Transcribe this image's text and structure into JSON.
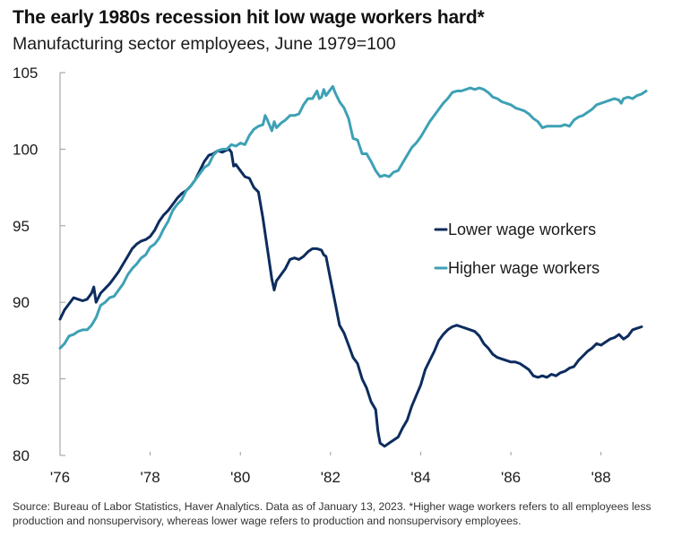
{
  "title": "The early 1980s recession hit low wage workers hard*",
  "subtitle": "Manufacturing sector employees, June 1979=100",
  "source": "Source: Bureau of Labor Statistics, Haver Analytics. Data as of January 13, 2023. *Higher wage workers refers to all employees less production and nonsupervisory, whereas lower wage refers to production and nonsupervisory employees.",
  "colors": {
    "lower": "#0d2c5e",
    "higher": "#3ea1b5",
    "axis": "#9a9a9a"
  },
  "chart_data": {
    "type": "line",
    "title": "The early 1980s recession hit low wage workers hard*",
    "subtitle": "Manufacturing sector employees, June 1979=100",
    "xlabel": "",
    "ylabel": "",
    "xlim": [
      1976.0,
      1989.0
    ],
    "ylim": [
      80,
      105
    ],
    "yticks": [
      80,
      85,
      90,
      95,
      100,
      105
    ],
    "ytick_labels": [
      "80",
      "85",
      "90",
      "95",
      "100",
      "105"
    ],
    "xticks": [
      1976,
      1978,
      1980,
      1982,
      1984,
      1986,
      1988
    ],
    "xtick_labels": [
      "'76",
      "'78",
      "'80",
      "'82",
      "'84",
      "'86",
      "'88"
    ],
    "grid": false,
    "legend": "center-right",
    "series": [
      {
        "name": "Lower wage workers",
        "color": "#0d2c5e",
        "points": [
          [
            1976.0,
            88.9
          ],
          [
            1976.1,
            89.5
          ],
          [
            1976.2,
            89.9
          ],
          [
            1976.3,
            90.3
          ],
          [
            1976.4,
            90.2
          ],
          [
            1976.5,
            90.1
          ],
          [
            1976.6,
            90.2
          ],
          [
            1976.7,
            90.6
          ],
          [
            1976.75,
            91.0
          ],
          [
            1976.8,
            90.0
          ],
          [
            1976.9,
            90.6
          ],
          [
            1977.0,
            90.9
          ],
          [
            1977.1,
            91.2
          ],
          [
            1977.2,
            91.6
          ],
          [
            1977.3,
            92.0
          ],
          [
            1977.4,
            92.5
          ],
          [
            1977.5,
            93.0
          ],
          [
            1977.6,
            93.5
          ],
          [
            1977.7,
            93.8
          ],
          [
            1977.8,
            94.0
          ],
          [
            1977.9,
            94.1
          ],
          [
            1978.0,
            94.3
          ],
          [
            1978.1,
            94.7
          ],
          [
            1978.2,
            95.3
          ],
          [
            1978.3,
            95.7
          ],
          [
            1978.4,
            96.0
          ],
          [
            1978.5,
            96.4
          ],
          [
            1978.6,
            96.8
          ],
          [
            1978.7,
            97.1
          ],
          [
            1978.8,
            97.3
          ],
          [
            1978.9,
            97.6
          ],
          [
            1979.0,
            98.0
          ],
          [
            1979.1,
            98.6
          ],
          [
            1979.2,
            99.2
          ],
          [
            1979.3,
            99.6
          ],
          [
            1979.4,
            99.7
          ],
          [
            1979.5,
            99.9
          ],
          [
            1979.6,
            99.8
          ],
          [
            1979.7,
            99.95
          ],
          [
            1979.75,
            100.0
          ],
          [
            1979.8,
            99.8
          ],
          [
            1979.85,
            98.9
          ],
          [
            1979.9,
            99.0
          ],
          [
            1980.0,
            98.6
          ],
          [
            1980.1,
            98.2
          ],
          [
            1980.2,
            98.1
          ],
          [
            1980.3,
            97.5
          ],
          [
            1980.4,
            97.2
          ],
          [
            1980.5,
            95.5
          ],
          [
            1980.6,
            93.5
          ],
          [
            1980.7,
            91.5
          ],
          [
            1980.75,
            90.8
          ],
          [
            1980.8,
            91.4
          ],
          [
            1980.9,
            91.8
          ],
          [
            1981.0,
            92.2
          ],
          [
            1981.1,
            92.8
          ],
          [
            1981.2,
            92.9
          ],
          [
            1981.3,
            92.8
          ],
          [
            1981.4,
            93.0
          ],
          [
            1981.5,
            93.3
          ],
          [
            1981.6,
            93.5
          ],
          [
            1981.7,
            93.5
          ],
          [
            1981.8,
            93.4
          ],
          [
            1981.85,
            93.1
          ],
          [
            1981.9,
            93.0
          ],
          [
            1982.0,
            91.5
          ],
          [
            1982.1,
            90.0
          ],
          [
            1982.2,
            88.5
          ],
          [
            1982.3,
            88.0
          ],
          [
            1982.4,
            87.2
          ],
          [
            1982.5,
            86.4
          ],
          [
            1982.6,
            86.0
          ],
          [
            1982.7,
            85.0
          ],
          [
            1982.8,
            84.4
          ],
          [
            1982.9,
            83.5
          ],
          [
            1983.0,
            83.0
          ],
          [
            1983.05,
            81.6
          ],
          [
            1983.1,
            80.8
          ],
          [
            1983.2,
            80.6
          ],
          [
            1983.3,
            80.8
          ],
          [
            1983.4,
            81.0
          ],
          [
            1983.5,
            81.2
          ],
          [
            1983.6,
            81.8
          ],
          [
            1983.7,
            82.3
          ],
          [
            1983.8,
            83.2
          ],
          [
            1983.9,
            83.9
          ],
          [
            1984.0,
            84.6
          ],
          [
            1984.1,
            85.6
          ],
          [
            1984.2,
            86.2
          ],
          [
            1984.3,
            86.8
          ],
          [
            1984.4,
            87.5
          ],
          [
            1984.5,
            87.9
          ],
          [
            1984.6,
            88.2
          ],
          [
            1984.7,
            88.4
          ],
          [
            1984.8,
            88.5
          ],
          [
            1984.9,
            88.4
          ],
          [
            1985.0,
            88.3
          ],
          [
            1985.1,
            88.2
          ],
          [
            1985.2,
            88.1
          ],
          [
            1985.3,
            87.8
          ],
          [
            1985.4,
            87.3
          ],
          [
            1985.5,
            87.0
          ],
          [
            1985.6,
            86.6
          ],
          [
            1985.7,
            86.4
          ],
          [
            1985.8,
            86.3
          ],
          [
            1985.9,
            86.2
          ],
          [
            1986.0,
            86.1
          ],
          [
            1986.1,
            86.1
          ],
          [
            1986.2,
            86.0
          ],
          [
            1986.3,
            85.8
          ],
          [
            1986.4,
            85.6
          ],
          [
            1986.5,
            85.2
          ],
          [
            1986.6,
            85.1
          ],
          [
            1986.7,
            85.2
          ],
          [
            1986.8,
            85.1
          ],
          [
            1986.9,
            85.3
          ],
          [
            1987.0,
            85.2
          ],
          [
            1987.1,
            85.4
          ],
          [
            1987.2,
            85.5
          ],
          [
            1987.3,
            85.7
          ],
          [
            1987.4,
            85.8
          ],
          [
            1987.5,
            86.2
          ],
          [
            1987.6,
            86.5
          ],
          [
            1987.7,
            86.8
          ],
          [
            1987.8,
            87.0
          ],
          [
            1987.9,
            87.3
          ],
          [
            1988.0,
            87.2
          ],
          [
            1988.1,
            87.4
          ],
          [
            1988.2,
            87.6
          ],
          [
            1988.3,
            87.7
          ],
          [
            1988.4,
            87.9
          ],
          [
            1988.5,
            87.6
          ],
          [
            1988.6,
            87.8
          ],
          [
            1988.7,
            88.2
          ],
          [
            1988.8,
            88.3
          ],
          [
            1988.9,
            88.4
          ]
        ]
      },
      {
        "name": "Higher wage workers",
        "color": "#3ea1b5",
        "points": [
          [
            1976.0,
            87.0
          ],
          [
            1976.1,
            87.3
          ],
          [
            1976.2,
            87.8
          ],
          [
            1976.3,
            87.9
          ],
          [
            1976.4,
            88.1
          ],
          [
            1976.5,
            88.2
          ],
          [
            1976.6,
            88.2
          ],
          [
            1976.7,
            88.5
          ],
          [
            1976.8,
            89.0
          ],
          [
            1976.9,
            89.8
          ],
          [
            1977.0,
            90.0
          ],
          [
            1977.1,
            90.3
          ],
          [
            1977.2,
            90.4
          ],
          [
            1977.3,
            90.8
          ],
          [
            1977.4,
            91.2
          ],
          [
            1977.5,
            91.8
          ],
          [
            1977.6,
            92.2
          ],
          [
            1977.7,
            92.5
          ],
          [
            1977.8,
            92.9
          ],
          [
            1977.9,
            93.1
          ],
          [
            1978.0,
            93.6
          ],
          [
            1978.1,
            93.8
          ],
          [
            1978.2,
            94.2
          ],
          [
            1978.3,
            94.8
          ],
          [
            1978.4,
            95.3
          ],
          [
            1978.5,
            96.0
          ],
          [
            1978.6,
            96.4
          ],
          [
            1978.7,
            96.7
          ],
          [
            1978.8,
            97.3
          ],
          [
            1978.9,
            97.6
          ],
          [
            1979.0,
            98.0
          ],
          [
            1979.1,
            98.4
          ],
          [
            1979.2,
            98.8
          ],
          [
            1979.3,
            99.0
          ],
          [
            1979.4,
            99.6
          ],
          [
            1979.5,
            99.9
          ],
          [
            1979.6,
            100.0
          ],
          [
            1979.7,
            100.0
          ],
          [
            1979.8,
            100.3
          ],
          [
            1979.9,
            100.2
          ],
          [
            1980.0,
            100.4
          ],
          [
            1980.1,
            100.3
          ],
          [
            1980.2,
            100.9
          ],
          [
            1980.3,
            101.3
          ],
          [
            1980.4,
            101.5
          ],
          [
            1980.5,
            101.6
          ],
          [
            1980.55,
            102.2
          ],
          [
            1980.6,
            101.9
          ],
          [
            1980.7,
            101.2
          ],
          [
            1980.75,
            101.8
          ],
          [
            1980.8,
            101.4
          ],
          [
            1980.9,
            101.7
          ],
          [
            1981.0,
            101.9
          ],
          [
            1981.1,
            102.2
          ],
          [
            1981.2,
            102.2
          ],
          [
            1981.3,
            102.3
          ],
          [
            1981.4,
            102.9
          ],
          [
            1981.5,
            103.3
          ],
          [
            1981.6,
            103.3
          ],
          [
            1981.7,
            103.8
          ],
          [
            1981.75,
            103.3
          ],
          [
            1981.8,
            103.4
          ],
          [
            1981.85,
            103.9
          ],
          [
            1981.9,
            103.5
          ],
          [
            1982.0,
            103.9
          ],
          [
            1982.05,
            104.1
          ],
          [
            1982.1,
            103.7
          ],
          [
            1982.2,
            103.1
          ],
          [
            1982.3,
            102.7
          ],
          [
            1982.4,
            102.0
          ],
          [
            1982.5,
            100.7
          ],
          [
            1982.6,
            100.6
          ],
          [
            1982.7,
            99.7
          ],
          [
            1982.8,
            99.7
          ],
          [
            1982.9,
            99.2
          ],
          [
            1983.0,
            98.6
          ],
          [
            1983.1,
            98.2
          ],
          [
            1983.2,
            98.3
          ],
          [
            1983.3,
            98.2
          ],
          [
            1983.4,
            98.5
          ],
          [
            1983.5,
            98.6
          ],
          [
            1983.6,
            99.1
          ],
          [
            1983.7,
            99.6
          ],
          [
            1983.8,
            100.1
          ],
          [
            1983.9,
            100.4
          ],
          [
            1984.0,
            100.8
          ],
          [
            1984.1,
            101.3
          ],
          [
            1984.2,
            101.8
          ],
          [
            1984.3,
            102.2
          ],
          [
            1984.4,
            102.6
          ],
          [
            1984.5,
            103.0
          ],
          [
            1984.6,
            103.3
          ],
          [
            1984.7,
            103.7
          ],
          [
            1984.8,
            103.8
          ],
          [
            1984.9,
            103.8
          ],
          [
            1985.0,
            103.9
          ],
          [
            1985.1,
            104.0
          ],
          [
            1985.2,
            103.9
          ],
          [
            1985.3,
            104.0
          ],
          [
            1985.4,
            103.9
          ],
          [
            1985.5,
            103.7
          ],
          [
            1985.6,
            103.4
          ],
          [
            1985.7,
            103.3
          ],
          [
            1985.8,
            103.1
          ],
          [
            1985.9,
            103.0
          ],
          [
            1986.0,
            102.9
          ],
          [
            1986.1,
            102.7
          ],
          [
            1986.2,
            102.6
          ],
          [
            1986.3,
            102.5
          ],
          [
            1986.4,
            102.3
          ],
          [
            1986.5,
            102.0
          ],
          [
            1986.6,
            101.8
          ],
          [
            1986.7,
            101.4
          ],
          [
            1986.8,
            101.5
          ],
          [
            1986.9,
            101.5
          ],
          [
            1987.0,
            101.5
          ],
          [
            1987.1,
            101.5
          ],
          [
            1987.2,
            101.6
          ],
          [
            1987.3,
            101.5
          ],
          [
            1987.4,
            101.9
          ],
          [
            1987.5,
            102.1
          ],
          [
            1987.6,
            102.2
          ],
          [
            1987.7,
            102.4
          ],
          [
            1987.8,
            102.6
          ],
          [
            1987.9,
            102.9
          ],
          [
            1988.0,
            103.0
          ],
          [
            1988.1,
            103.1
          ],
          [
            1988.2,
            103.2
          ],
          [
            1988.3,
            103.3
          ],
          [
            1988.4,
            103.2
          ],
          [
            1988.45,
            103.0
          ],
          [
            1988.5,
            103.3
          ],
          [
            1988.6,
            103.4
          ],
          [
            1988.7,
            103.3
          ],
          [
            1988.8,
            103.5
          ],
          [
            1988.9,
            103.6
          ],
          [
            1989.0,
            103.8
          ]
        ]
      }
    ]
  }
}
